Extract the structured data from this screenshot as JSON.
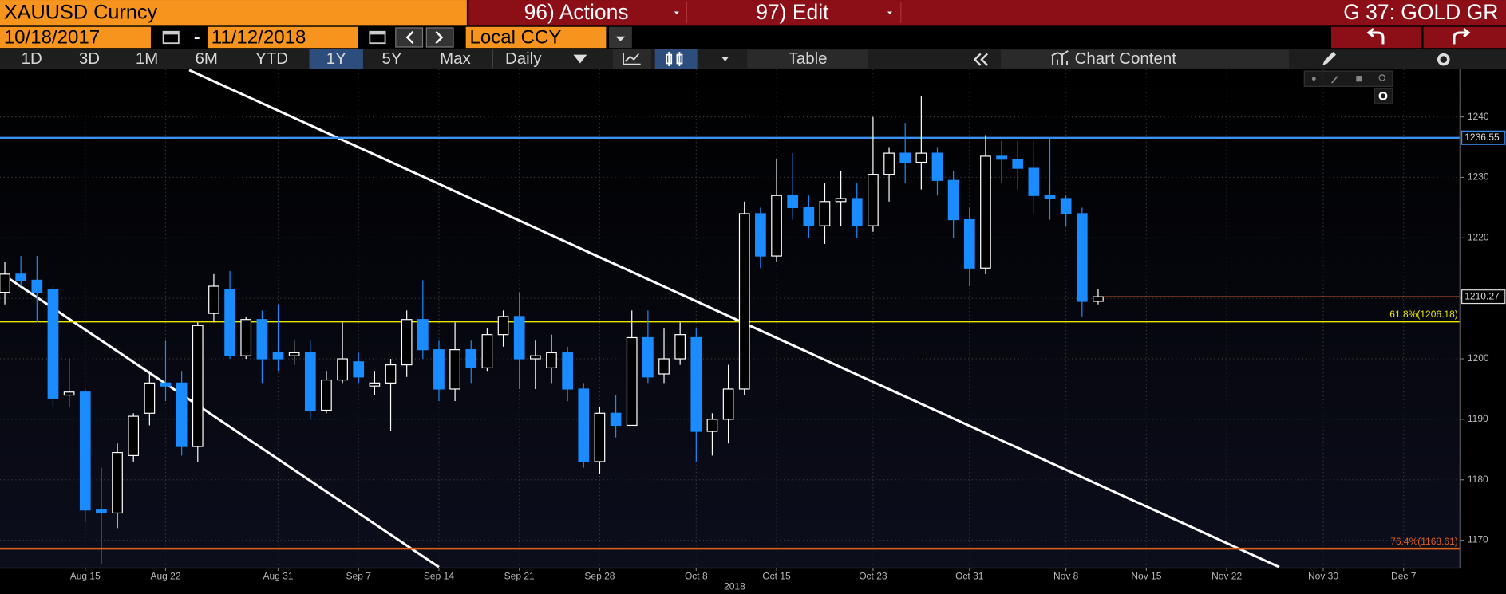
{
  "toolbar": {
    "security": "XAUUSD Curncy",
    "actions": "96) Actions",
    "edit": "97) Edit",
    "page": "G 37: GOLD GR",
    "start_date": "10/18/2017",
    "date_separator": "-",
    "end_date": "11/12/2018",
    "currency": "Local CCY",
    "periods": [
      "1D",
      "3D",
      "1M",
      "6M",
      "YTD",
      "1Y",
      "5Y",
      "Max"
    ],
    "frequency": "Daily",
    "table": "Table",
    "chart_content": "Chart Content"
  },
  "chart_data": {
    "type": "candlestick",
    "categories": [
      null,
      null,
      null,
      null,
      null,
      "Aug 15",
      null,
      null,
      null,
      null,
      "Aug 22",
      null,
      null,
      null,
      null,
      null,
      null,
      "Aug 31",
      null,
      null,
      null,
      null,
      "Sep 7",
      null,
      null,
      null,
      null,
      "Sep 14",
      null,
      null,
      null,
      null,
      "Sep 21",
      null,
      null,
      null,
      null,
      "Sep 28",
      null,
      null,
      null,
      null,
      null,
      "Oct 8",
      null,
      null,
      null,
      null,
      "Oct 15",
      null,
      null,
      null,
      null,
      null,
      "Oct 23",
      null,
      null,
      null,
      null,
      null,
      "Oct 31",
      null,
      null,
      null,
      null,
      null,
      "Nov 8",
      null,
      null,
      null,
      null,
      "Nov 15",
      null,
      null,
      null,
      null,
      "Nov 22",
      null,
      null,
      null,
      null,
      null,
      "Nov 30",
      null,
      null,
      null,
      null,
      "Dec 7",
      null,
      null,
      null
    ],
    "year_label": "2018",
    "open": [
      1211,
      1214,
      1213,
      1211.5,
      1194,
      1194.5,
      1175,
      1174.5,
      1184,
      1191,
      1196,
      1196,
      1185.5,
      1207.5,
      1211.5,
      1200.5,
      1206.5,
      1201,
      1200.5,
      1201,
      1191.5,
      1196.5,
      1199.5,
      1195.5,
      1196,
      1199,
      1206.5,
      1201.5,
      1195,
      1201.5,
      1198.5,
      1204,
      1207,
      1200,
      1198.5,
      1201,
      1195,
      1183,
      1191,
      1189,
      1203.5,
      1197.5,
      1200,
      1203.5,
      1188,
      1190,
      1195,
      1224,
      1217,
      1227,
      1225,
      1222,
      1226,
      1226.5,
      1222,
      1230.5,
      1234,
      1232.5,
      1234,
      1229.5,
      1223,
      1215,
      1233.5,
      1233,
      1231.5,
      1227,
      1226.5,
      1224,
      1209.5,
      null,
      null,
      null,
      null,
      null,
      null,
      null,
      null,
      null,
      null,
      null,
      null,
      null,
      null,
      null,
      null,
      null,
      null,
      null,
      null,
      null,
      null
    ],
    "high": [
      1216,
      1217,
      1217,
      1212,
      1200,
      1195,
      1182,
      1186,
      1191,
      1198,
      1203,
      1198,
      1206,
      1214,
      1214.5,
      1207,
      1208,
      1209,
      1203,
      1203,
      1198,
      1206,
      1201,
      1198,
      1200,
      1208,
      1213,
      1203,
      1206,
      1203,
      1205,
      1208,
      1211,
      1203,
      1204,
      1202,
      1196,
      1192,
      1194,
      1208,
      1208,
      1205,
      1206,
      1205,
      1191,
      1199,
      1226,
      1225,
      1233,
      1234,
      1227,
      1229,
      1231,
      1229,
      1240,
      1235,
      1239,
      1243.5,
      1235,
      1231,
      1225,
      1237,
      1236,
      1236,
      1236,
      1236.5,
      1227,
      1225,
      1211.5,
      null,
      null,
      null,
      null,
      null,
      null,
      null,
      null,
      null,
      null,
      null,
      null,
      null,
      null,
      null,
      null,
      null,
      null,
      null,
      null,
      null,
      null
    ],
    "low": [
      1209,
      1212,
      1206,
      1192,
      1192,
      1173,
      1166,
      1172,
      1183,
      1189,
      1193,
      1184,
      1183,
      1206,
      1200,
      1200,
      1196,
      1198,
      1199,
      1190,
      1191,
      1196,
      1196,
      1194,
      1188,
      1197,
      1200,
      1193,
      1193,
      1196,
      1198,
      1202,
      1195,
      1195,
      1196,
      1193,
      1182,
      1181,
      1187,
      1189,
      1196,
      1196,
      1199,
      1183,
      1184,
      1186,
      1194,
      1215,
      1216,
      1223,
      1220,
      1219,
      1222,
      1220,
      1221,
      1226,
      1229,
      1228,
      1227,
      1220,
      1212,
      1214,
      1229,
      1228,
      1224,
      1223,
      1222,
      1207,
      1209,
      null,
      null,
      null,
      null,
      null,
      null,
      null,
      null,
      null,
      null,
      null,
      null,
      null,
      null,
      null,
      null,
      null,
      null,
      null,
      null,
      null,
      null
    ],
    "close": [
      1214,
      1213,
      1211,
      1193.5,
      1194.5,
      1175,
      1174.5,
      1184.5,
      1190.5,
      1196,
      1195.5,
      1185.5,
      1205.5,
      1212,
      1200.5,
      1206.5,
      1200,
      1200,
      1201,
      1191.5,
      1196.5,
      1200,
      1197,
      1196,
      1199,
      1206.5,
      1201.5,
      1195,
      1201.5,
      1198.5,
      1204,
      1207,
      1200,
      1200.5,
      1201,
      1195,
      1183,
      1191,
      1189,
      1203.5,
      1197,
      1200,
      1204,
      1188,
      1190,
      1195,
      1224,
      1217,
      1227,
      1225,
      1222,
      1226,
      1226.5,
      1222,
      1230.5,
      1234,
      1232.5,
      1234,
      1229.5,
      1223,
      1215,
      1233.5,
      1233,
      1231.5,
      1227,
      1226.5,
      1224,
      1209.5,
      1210.27,
      null,
      null,
      null,
      null,
      null,
      null,
      null,
      null,
      null,
      null,
      null,
      null,
      null,
      null,
      null,
      null,
      null,
      null,
      null,
      null,
      null,
      null
    ],
    "up_color": "#ffffff",
    "down_color": "#1a8cff",
    "ylim": [
      1165.4,
      1247.9
    ],
    "yticks": [
      1170,
      1180,
      1190,
      1200,
      1210,
      1220,
      1230,
      1240
    ],
    "grid": true,
    "levels": [
      {
        "value": 1236.55,
        "color": "#3b8ff0",
        "boxed": true
      },
      {
        "value": 1206.18,
        "label": "61.8%(1206.18)",
        "color": "#e6e600"
      },
      {
        "value": 1168.61,
        "label": "76.4%(1168.61)",
        "color": "#e0601a"
      }
    ],
    "last_price": {
      "value": 1210.27,
      "color": "#c8582a"
    }
  }
}
